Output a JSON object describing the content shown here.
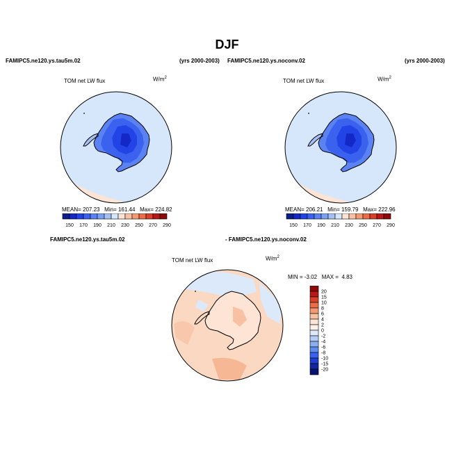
{
  "figure": {
    "title": "DJF",
    "left_case": "FAMIPC5.ne120.ys.tau5m.02",
    "left_years": "(yrs 2000-2003)",
    "right_case": "FAMIPC5.ne120.ys.noconv.02",
    "right_years": "(yrs 2000-2003)",
    "diff_left": "FAMIPC5.ne120.ys.tau5m.02",
    "diff_right": "- FAMIPC5.ne120.ys.noconv.02"
  },
  "chart_data": [
    {
      "type": "heatmap",
      "projection": "polar-stereographic-south",
      "variable": "TOM net LW flux",
      "units_base": "W/m",
      "units_exp": "2",
      "stats": {
        "mean_label": "MEAN=",
        "mean": "207.23",
        "min_label": "Min=",
        "min": "161.44",
        "max_label": "Max=",
        "max": "224.82"
      },
      "colorbar": {
        "tick_labels": [
          "150",
          "170",
          "190",
          "210",
          "230",
          "250",
          "270",
          "290"
        ],
        "colors": [
          "#0d1d8a",
          "#1428c8",
          "#2244e6",
          "#3a62ee",
          "#5a82f2",
          "#7aa0f2",
          "#a6c0f4",
          "#d6e6fb",
          "#fde4d4",
          "#f9c1a4",
          "#f39a75",
          "#ea6c48",
          "#d8402a",
          "#b81818",
          "#8b0a0a"
        ]
      }
    },
    {
      "type": "heatmap",
      "projection": "polar-stereographic-south",
      "variable": "TOM net LW flux",
      "units_base": "W/m",
      "units_exp": "2",
      "stats": {
        "mean_label": "MEAN=",
        "mean": "206.21",
        "min_label": "Min=",
        "min": "159.79",
        "max_label": "Max=",
        "max": "222.96"
      },
      "colorbar": {
        "tick_labels": [
          "150",
          "170",
          "190",
          "210",
          "230",
          "250",
          "270",
          "290"
        ],
        "colors": [
          "#0d1d8a",
          "#1428c8",
          "#2244e6",
          "#3a62ee",
          "#5a82f2",
          "#7aa0f2",
          "#a6c0f4",
          "#d6e6fb",
          "#fde4d4",
          "#f9c1a4",
          "#f39a75",
          "#ea6c48",
          "#d8402a",
          "#b81818",
          "#8b0a0a"
        ]
      }
    },
    {
      "type": "heatmap",
      "projection": "polar-stereographic-south",
      "variable": "TOM net LW flux",
      "units_base": "W/m",
      "units_exp": "2",
      "stats": {
        "min_label": "MIN =",
        "min": "-3.02",
        "max_label": "MAX =",
        "max": "4.83"
      },
      "colorbar": {
        "orientation": "vertical",
        "tick_labels": [
          "20",
          "15",
          "10",
          "8",
          "6",
          "4",
          "2",
          "0",
          "-2",
          "-4",
          "-6",
          "-8",
          "-10",
          "-15",
          "-20"
        ],
        "colors": [
          "#8b0a0a",
          "#b81818",
          "#d8402a",
          "#ea6c48",
          "#f39a75",
          "#f9c1a4",
          "#fde4d4",
          "#fdf0e8",
          "#dce9fb",
          "#b4cdf6",
          "#8aaef2",
          "#5f8cee",
          "#3a62ee",
          "#1f3ed0",
          "#14249e",
          "#0a1470"
        ]
      }
    }
  ]
}
